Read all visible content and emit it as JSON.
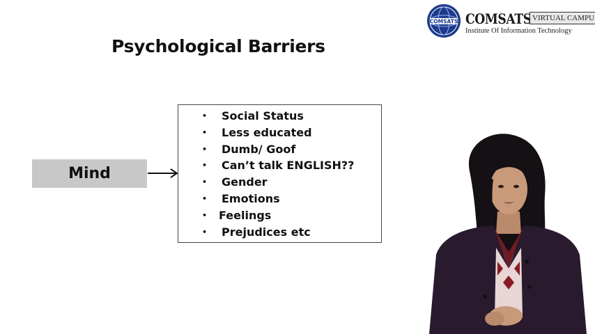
{
  "logo": {
    "name": "COMSATS",
    "badge": "VIRTUAL CAMPUS",
    "subtitle": "Institute Of Information Technology",
    "seal_text": "COMSATS"
  },
  "slide": {
    "title": "Psychological Barriers",
    "mind_label": "Mind",
    "items": [
      "Social Status",
      "Less educated",
      "Dumb/ Goof",
      "Can’t talk ENGLISH??",
      "Gender",
      "Emotions",
      "Feelings",
      "Prejudices  etc"
    ],
    "bullet": "•"
  },
  "colors": {
    "background": "#ffffff",
    "mind_box": "#c8c8c8",
    "seal_blue": "#1d3b8a",
    "jacket": "#2a1a2e"
  },
  "icons": {
    "arrow": "arrow-right-icon",
    "seal": "comsats-seal-icon"
  }
}
